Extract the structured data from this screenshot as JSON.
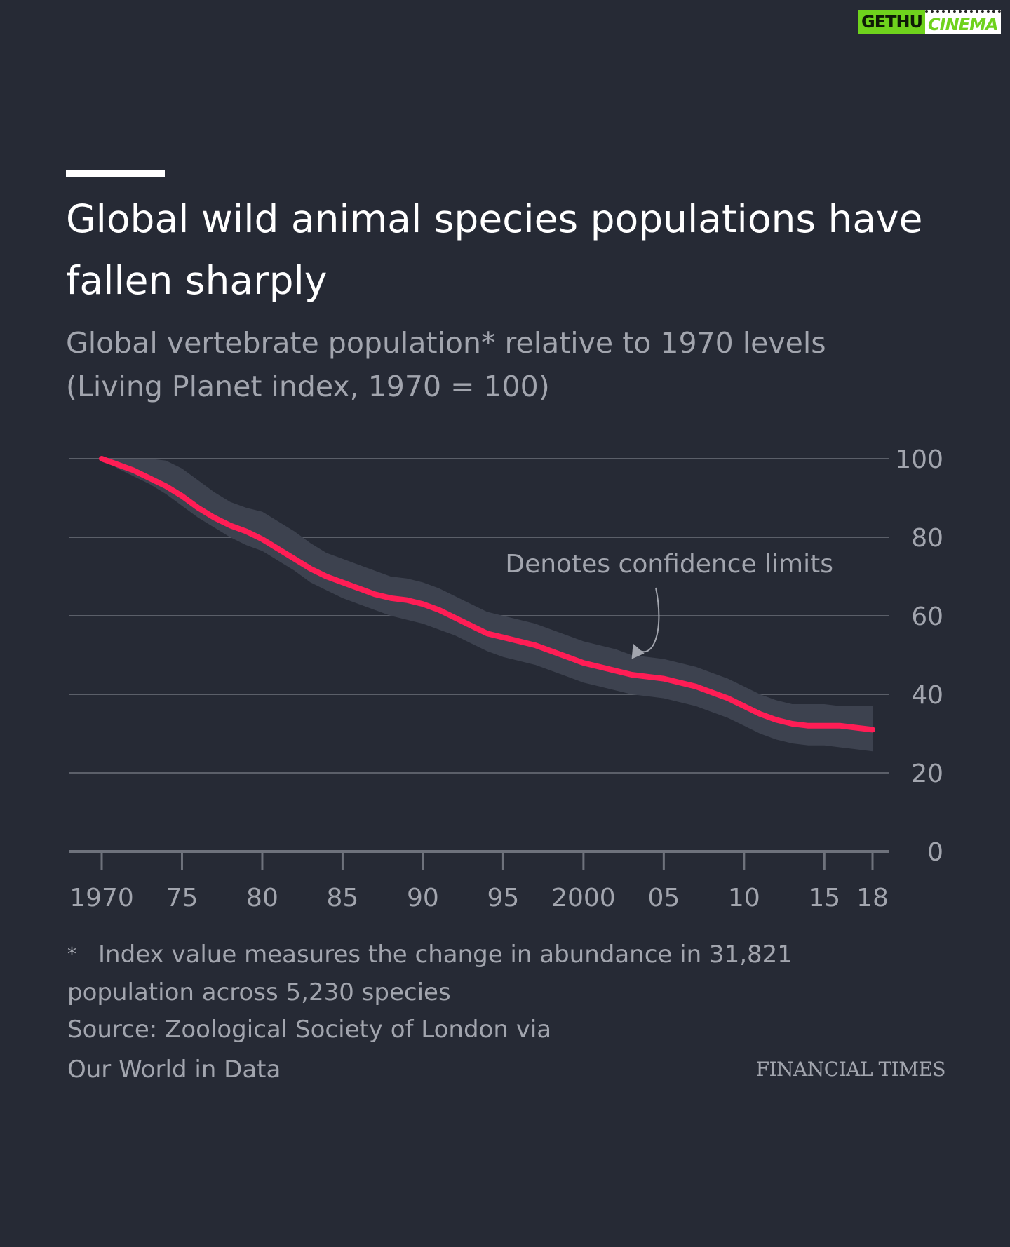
{
  "watermark": {
    "part1": "GETHU",
    "part2": "CINEMA"
  },
  "header": {
    "title_line1": "Global wild animal species populations have",
    "title_line2": "fallen sharply",
    "subtitle_line1": "Global vertebrate population* relative to 1970 levels",
    "subtitle_line2": "(Living Planet index, 1970 = 100)"
  },
  "chart_data": {
    "type": "line",
    "title": "Global wild animal species populations have fallen sharply",
    "subtitle": "Global vertebrate population* relative to 1970 levels (Living Planet index, 1970 = 100)",
    "xlabel": "",
    "ylabel": "",
    "x": [
      1970,
      1971,
      1972,
      1973,
      1974,
      1975,
      1976,
      1977,
      1978,
      1979,
      1980,
      1981,
      1982,
      1983,
      1984,
      1985,
      1986,
      1987,
      1988,
      1989,
      1990,
      1991,
      1992,
      1993,
      1994,
      1995,
      1996,
      1997,
      1998,
      1999,
      2000,
      2001,
      2002,
      2003,
      2004,
      2005,
      2006,
      2007,
      2008,
      2009,
      2010,
      2011,
      2012,
      2013,
      2014,
      2015,
      2016,
      2017,
      2018
    ],
    "series": [
      {
        "values": [
          100,
          98.5,
          97,
          95,
          93,
          90.5,
          87.5,
          85,
          83,
          81.5,
          79.5,
          77,
          74.5,
          72,
          70,
          68.5,
          67,
          65.5,
          64.5,
          64,
          63,
          61.5,
          59.5,
          57.5,
          55.5,
          54.5,
          53.5,
          52.5,
          51,
          49.5,
          48,
          47,
          46,
          45,
          44.5,
          44,
          43,
          42,
          40.5,
          39,
          37,
          35,
          33.5,
          32.5,
          32,
          32,
          32,
          31.5,
          31
        ],
        "lower": [
          100,
          97.5,
          95.5,
          93.5,
          91,
          88,
          85,
          82.5,
          80,
          78,
          76.5,
          74,
          71.5,
          68.5,
          66.5,
          64.5,
          63,
          61.5,
          60,
          59,
          58,
          56.5,
          55,
          53,
          51,
          49.5,
          48.5,
          47.5,
          46,
          44.5,
          43,
          42,
          41,
          40,
          39.5,
          39,
          38,
          37,
          35.5,
          34,
          32,
          30,
          28.5,
          27.5,
          27,
          27,
          26.5,
          26,
          25.5
        ],
        "upper": [
          100,
          100,
          100,
          100,
          99.5,
          97.5,
          94.5,
          91.5,
          89,
          87.5,
          86.5,
          84,
          81.5,
          78.5,
          76,
          74.5,
          73,
          71.5,
          70,
          69.5,
          68.5,
          67,
          65,
          63,
          61,
          60,
          59,
          58,
          56.5,
          55,
          53.5,
          52.5,
          51.5,
          50,
          49.5,
          49,
          48,
          47,
          45.5,
          44,
          42,
          40,
          38.5,
          37.5,
          37.5,
          37.5,
          37,
          37,
          37
        ]
      }
    ],
    "xlim": [
      1970,
      2018
    ],
    "ylim": [
      0,
      100
    ],
    "y_ticks": [
      0,
      20,
      40,
      60,
      80,
      100
    ],
    "y_tick_labels": [
      "0",
      "20",
      "40",
      "60",
      "80",
      "100"
    ],
    "x_ticks": [
      1970,
      1975,
      1980,
      1985,
      1990,
      1995,
      2000,
      2005,
      2010,
      2015,
      2018
    ],
    "x_tick_labels": [
      "1970",
      "75",
      "80",
      "85",
      "90",
      "95",
      "2000",
      "05",
      "10",
      "15",
      "18"
    ],
    "grid": true,
    "y_axis_side": "right",
    "annotation": {
      "text": "Denotes confidence limits",
      "x": 2003,
      "y": 49
    },
    "colors": {
      "line": "#ff1d55",
      "band": "#3d424f",
      "grid": "#5b5f69",
      "axis": "#6e727c",
      "text": "#a2a5ae"
    }
  },
  "footnote": {
    "marker": "*",
    "line1": "Index value measures the change in abundance in 31,821",
    "line2": "population across 5,230 species"
  },
  "source": {
    "line1": "Source: Zoological Society of London via",
    "line2": "Our World in Data"
  },
  "brand": "FINANCIAL TIMES"
}
